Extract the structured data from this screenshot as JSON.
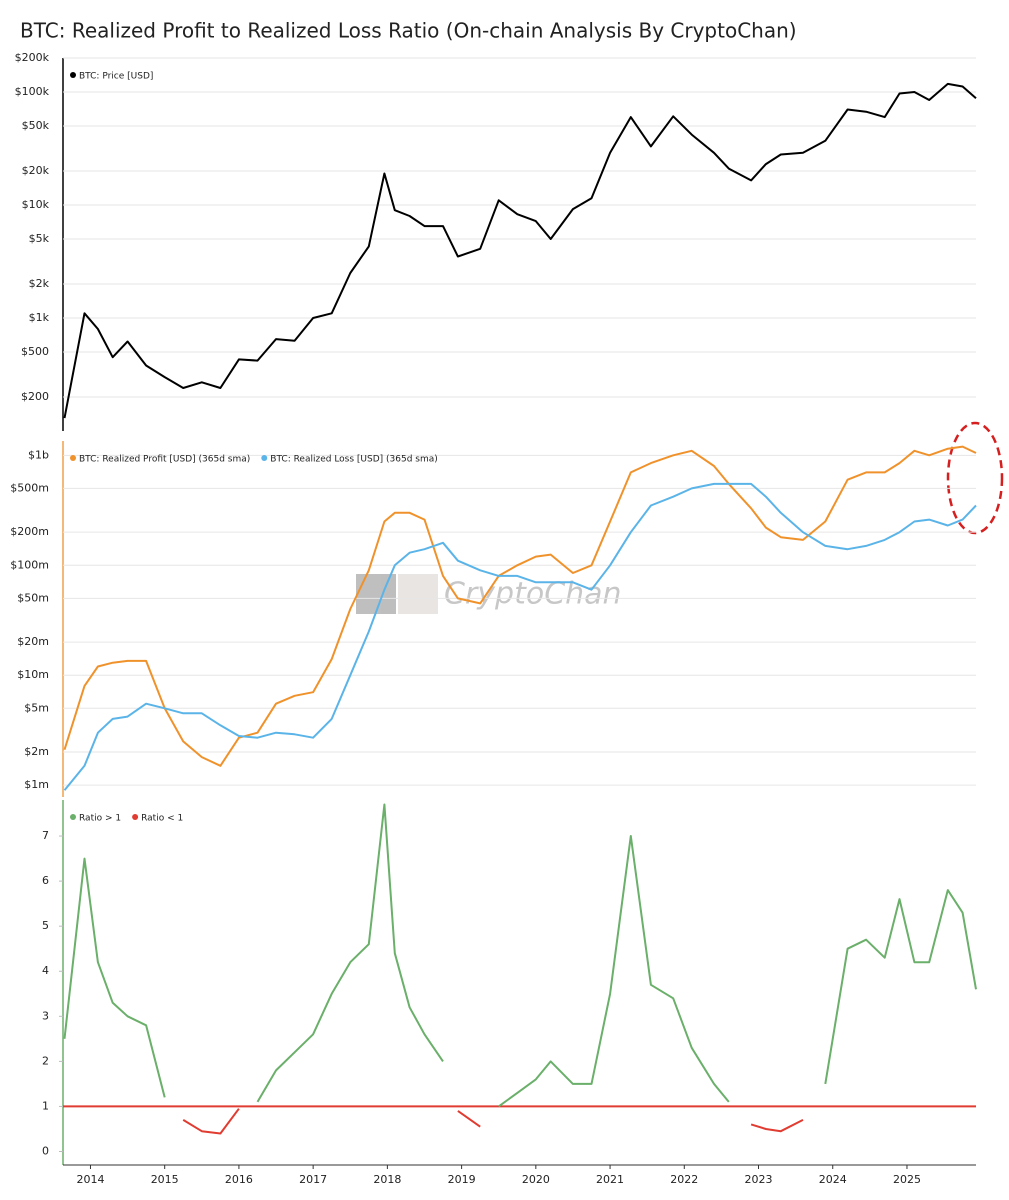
{
  "title": "BTC: Realized Profit to Realized Loss Ratio (On-chain Analysis By CryptoChan)",
  "watermark": "CryptoChan",
  "chart_data": [
    {
      "type": "line",
      "log_scale": true,
      "grid": true,
      "x": [
        2013.65,
        2013.92,
        2014.1,
        2014.3,
        2014.5,
        2014.75,
        2015.0,
        2015.25,
        2015.5,
        2015.75,
        2016.0,
        2016.25,
        2016.5,
        2016.75,
        2017.0,
        2017.25,
        2017.5,
        2017.75,
        2017.96,
        2018.1,
        2018.3,
        2018.5,
        2018.75,
        2018.95,
        2019.25,
        2019.5,
        2019.75,
        2020.0,
        2020.2,
        2020.5,
        2020.75,
        2021.0,
        2021.28,
        2021.55,
        2021.85,
        2022.1,
        2022.4,
        2022.6,
        2022.9,
        2023.1,
        2023.3,
        2023.6,
        2023.9,
        2024.2,
        2024.45,
        2024.7,
        2024.9,
        2025.1,
        2025.3,
        2025.55,
        2025.75,
        2025.93
      ],
      "xlim": [
        2013.63,
        2025.93
      ],
      "ylim": [
        100,
        200000
      ],
      "yticks": [
        {
          "value": 200000,
          "label": "$200k"
        },
        {
          "value": 100000,
          "label": "$100k"
        },
        {
          "value": 50000,
          "label": "$50k"
        },
        {
          "value": 20000,
          "label": "$20k"
        },
        {
          "value": 10000,
          "label": "$10k"
        },
        {
          "value": 5000,
          "label": "$5k"
        },
        {
          "value": 2000,
          "label": "$2k"
        },
        {
          "value": 1000,
          "label": "$1k"
        },
        {
          "value": 500,
          "label": "$500"
        },
        {
          "value": 200,
          "label": "$200"
        }
      ],
      "axis_color": "#000000",
      "series": [
        {
          "name": "BTC: Price [USD]",
          "color": "#000000",
          "values": [
            130,
            1100,
            800,
            450,
            620,
            380,
            300,
            240,
            270,
            240,
            430,
            420,
            650,
            630,
            1000,
            1100,
            2500,
            4300,
            19000,
            9000,
            8000,
            6500,
            6500,
            3500,
            4100,
            11000,
            8300,
            7200,
            5000,
            9200,
            11500,
            29000,
            60000,
            33000,
            61000,
            42000,
            29000,
            21000,
            16500,
            23000,
            28000,
            29000,
            37000,
            70000,
            67000,
            60000,
            97000,
            100000,
            85000,
            118000,
            112000,
            88000
          ]
        }
      ]
    },
    {
      "type": "line",
      "log_scale": true,
      "grid": true,
      "x": [
        2013.65,
        2013.92,
        2014.1,
        2014.3,
        2014.5,
        2014.75,
        2015.0,
        2015.25,
        2015.5,
        2015.75,
        2016.0,
        2016.25,
        2016.5,
        2016.75,
        2017.0,
        2017.25,
        2017.5,
        2017.75,
        2017.96,
        2018.1,
        2018.3,
        2018.5,
        2018.75,
        2018.95,
        2019.25,
        2019.5,
        2019.75,
        2020.0,
        2020.2,
        2020.5,
        2020.75,
        2021.0,
        2021.28,
        2021.55,
        2021.85,
        2022.1,
        2022.4,
        2022.6,
        2022.9,
        2023.1,
        2023.3,
        2023.6,
        2023.9,
        2024.2,
        2024.45,
        2024.7,
        2024.9,
        2025.1,
        2025.3,
        2025.55,
        2025.75,
        2025.93
      ],
      "xlim": [
        2013.63,
        2025.93
      ],
      "ylim": [
        780000,
        1350000000
      ],
      "yticks": [
        {
          "value": 1000000000,
          "label": "$1b"
        },
        {
          "value": 500000000,
          "label": "$500m"
        },
        {
          "value": 200000000,
          "label": "$200m"
        },
        {
          "value": 100000000,
          "label": "$100m"
        },
        {
          "value": 50000000,
          "label": "$50m"
        },
        {
          "value": 20000000,
          "label": "$20m"
        },
        {
          "value": 10000000,
          "label": "$10m"
        },
        {
          "value": 5000000,
          "label": "$5m"
        },
        {
          "value": 2000000,
          "label": "$2m"
        },
        {
          "value": 1000000,
          "label": "$1m"
        }
      ],
      "axis_color": "#f0a04b",
      "series": [
        {
          "name": "BTC: Realized Profit [USD] (365d sma)",
          "color": "#f0922b",
          "values": [
            2100000,
            8000000,
            12000000,
            13000000,
            13500000,
            13500000,
            5000000,
            2500000,
            1800000,
            1500000,
            2700000,
            3000000,
            5500000,
            6500000,
            7000000,
            14000000,
            40000000,
            90000000,
            250000000,
            300000000,
            300000000,
            260000000,
            80000000,
            50000000,
            45000000,
            80000000,
            100000000,
            120000000,
            125000000,
            85000000,
            100000000,
            250000000,
            700000000,
            850000000,
            1000000000,
            1100000000,
            800000000,
            550000000,
            330000000,
            220000000,
            180000000,
            170000000,
            250000000,
            600000000,
            700000000,
            700000000,
            850000000,
            1100000000,
            1000000000,
            1150000000,
            1200000000,
            1050000000
          ]
        },
        {
          "name": "BTC: Realized Loss [USD] (365d sma)",
          "color": "#5bb4e8",
          "values": [
            900000,
            1500000,
            3000000,
            4000000,
            4200000,
            5500000,
            5000000,
            4500000,
            4500000,
            3500000,
            2800000,
            2700000,
            3000000,
            2900000,
            2700000,
            4000000,
            10000000,
            25000000,
            60000000,
            100000000,
            130000000,
            140000000,
            160000000,
            110000000,
            90000000,
            80000000,
            80000000,
            70000000,
            70000000,
            70000000,
            60000000,
            100000000,
            200000000,
            350000000,
            420000000,
            500000000,
            550000000,
            550000000,
            550000000,
            420000000,
            300000000,
            200000000,
            150000000,
            140000000,
            150000000,
            170000000,
            200000000,
            250000000,
            260000000,
            230000000,
            260000000,
            350000000
          ]
        }
      ]
    },
    {
      "type": "line",
      "log_scale": false,
      "grid": false,
      "x": [
        2013.65,
        2013.92,
        2014.1,
        2014.3,
        2014.5,
        2014.75,
        2015.0,
        2015.25,
        2015.5,
        2015.75,
        2016.0,
        2016.25,
        2016.5,
        2016.75,
        2017.0,
        2017.25,
        2017.5,
        2017.75,
        2017.96,
        2018.1,
        2018.3,
        2018.5,
        2018.75,
        2018.95,
        2019.25,
        2019.5,
        2019.75,
        2020.0,
        2020.2,
        2020.5,
        2020.75,
        2021.0,
        2021.28,
        2021.55,
        2021.85,
        2022.1,
        2022.4,
        2022.6,
        2022.9,
        2023.1,
        2023.3,
        2023.6,
        2023.9,
        2024.2,
        2024.45,
        2024.7,
        2024.9,
        2025.1,
        2025.3,
        2025.55,
        2025.75,
        2025.93
      ],
      "xlim": [
        2013.63,
        2025.93
      ],
      "xticks": [
        2014,
        2015,
        2016,
        2017,
        2018,
        2019,
        2020,
        2021,
        2022,
        2023,
        2024,
        2025
      ],
      "ylim": [
        -0.3,
        7.8
      ],
      "yticks": [
        0,
        1,
        2,
        3,
        4,
        5,
        6,
        7
      ],
      "axis_color": "#6aaf6a",
      "reference_line": {
        "value": 1,
        "color": "#e03c31"
      },
      "series": [
        {
          "name": "Ratio > 1",
          "color": "#6aaf6a",
          "values": [
            2.5,
            6.5,
            4.2,
            3.3,
            3.0,
            2.8,
            1.2,
            null,
            null,
            null,
            null,
            1.1,
            1.8,
            2.2,
            2.6,
            3.5,
            4.2,
            4.6,
            7.7,
            4.4,
            3.2,
            2.6,
            2.0,
            null,
            null,
            1.0,
            1.3,
            1.6,
            2.0,
            1.5,
            1.5,
            3.5,
            7.0,
            3.7,
            3.4,
            2.3,
            1.5,
            1.1,
            null,
            null,
            null,
            null,
            1.5,
            4.5,
            4.7,
            4.3,
            5.6,
            4.2,
            4.2,
            5.8,
            5.3,
            3.6
          ]
        },
        {
          "name": "Ratio < 1",
          "color": "#e03c31",
          "values": [
            null,
            null,
            null,
            null,
            null,
            null,
            null,
            0.7,
            0.45,
            0.4,
            0.95,
            null,
            null,
            null,
            null,
            null,
            null,
            null,
            null,
            null,
            null,
            null,
            null,
            0.9,
            0.55,
            null,
            null,
            null,
            null,
            null,
            null,
            null,
            null,
            null,
            null,
            null,
            null,
            null,
            0.6,
            0.5,
            0.45,
            0.7,
            null,
            null,
            null,
            null,
            null,
            null,
            null,
            null,
            null,
            null
          ]
        }
      ]
    }
  ]
}
